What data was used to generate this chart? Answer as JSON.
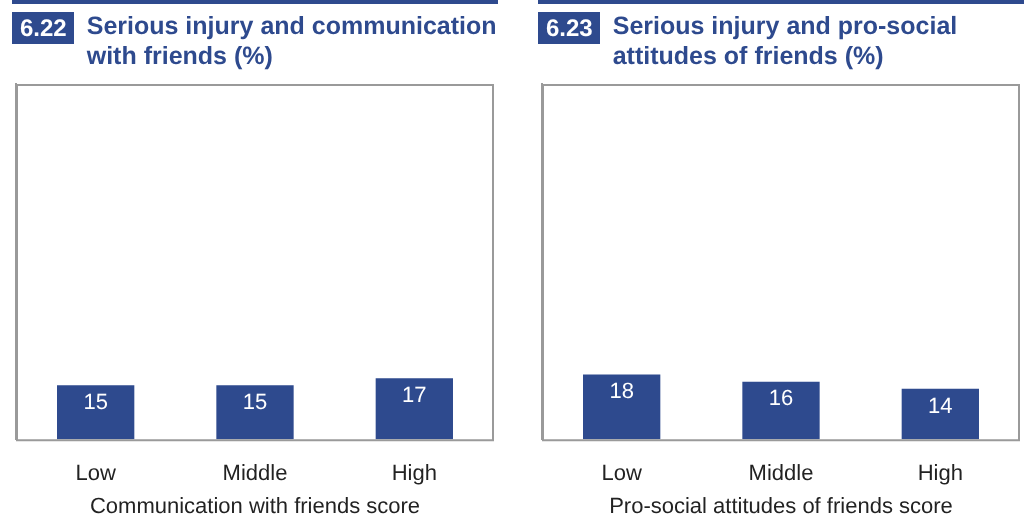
{
  "chart_data": [
    {
      "type": "bar",
      "title": "Serious injury and communication with friends (%)",
      "annotations": [
        "6.22"
      ],
      "xlabel": "Communication with friends score",
      "categories": [
        "Low",
        "Middle",
        "High"
      ],
      "values": [
        15,
        15,
        17
      ],
      "color": "#2e4a8e",
      "ylim": [
        0,
        100
      ],
      "tick_labels": "x",
      "data_labels": true
    },
    {
      "type": "bar",
      "title": "Serious injury and pro-social attitudes of friends (%)",
      "annotations": [
        "6.23"
      ],
      "xlabel": "Pro-social attitudes of friends score",
      "categories": [
        "Low",
        "Middle",
        "High"
      ],
      "values": [
        18,
        16,
        14
      ],
      "color": "#2e4a8e",
      "ylim": [
        0,
        100
      ],
      "tick_labels": "x",
      "data_labels": true
    }
  ]
}
